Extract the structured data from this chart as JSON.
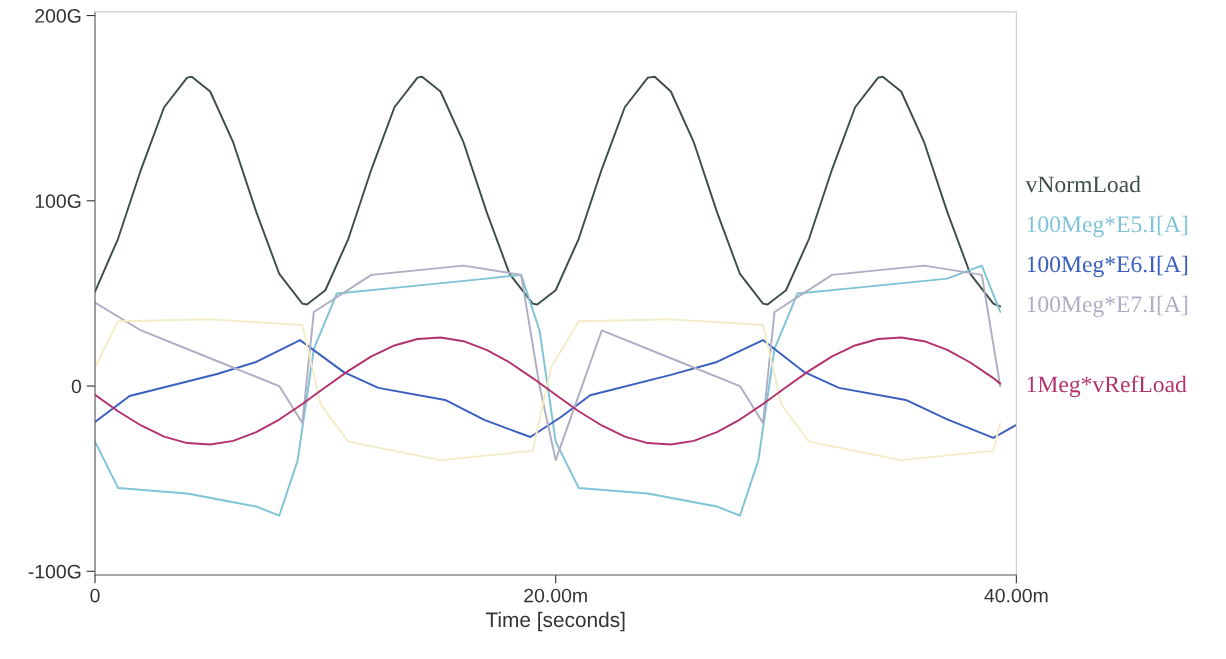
{
  "chart_data": {
    "type": "line",
    "xlabel": "Time [seconds]",
    "xlim": [
      0,
      40
    ],
    "ylim": [
      -102,
      202
    ],
    "xticks": [
      {
        "value": 0,
        "label": "0"
      },
      {
        "value": 20,
        "label": "20.00m"
      },
      {
        "value": 40,
        "label": "40.00m"
      }
    ],
    "yticks": [
      {
        "value": -100,
        "label": "-100G"
      },
      {
        "value": 0,
        "label": "0"
      },
      {
        "value": 100,
        "label": "100G"
      },
      {
        "value": 200,
        "label": "200G"
      }
    ],
    "grid": false,
    "legend": "right",
    "marker": "none",
    "line_style": "solid",
    "series": [
      {
        "name": "vNormLoad",
        "color": "#3f4f47",
        "x": [
          0,
          1,
          2,
          3,
          4,
          4.2,
          5,
          6,
          7,
          8,
          9,
          9.2,
          10,
          11,
          12,
          13,
          14,
          14.2,
          15,
          16,
          17,
          18,
          19,
          19.2,
          20,
          21,
          22,
          23,
          24,
          24.3,
          25,
          26,
          27,
          28,
          29,
          29.2,
          30,
          31,
          32,
          33,
          34,
          34.2,
          35,
          36,
          37,
          38,
          39,
          39.3
        ],
        "values": [
          51,
          79.5,
          117,
          150.5,
          166.5,
          167,
          159,
          131.5,
          94,
          60.5,
          44.5,
          44,
          51.7,
          79.5,
          117,
          150.5,
          166.5,
          167,
          159,
          131.5,
          94,
          60.5,
          44.5,
          44,
          51.7,
          79.5,
          117,
          150.5,
          166.5,
          167,
          159,
          131.5,
          94,
          60.5,
          44.5,
          44,
          51.7,
          79.5,
          117,
          150.5,
          166.5,
          167,
          159,
          131.5,
          94,
          60.5,
          44.5,
          43
        ]
      },
      {
        "name": "100Meg*E5.I[A]",
        "color": "#7fc3d6",
        "x": [
          0,
          1,
          4,
          7,
          8,
          8.8,
          9.5,
          10.5,
          13,
          17,
          18.5,
          19.3,
          20,
          21,
          24,
          27,
          28,
          28.8,
          29.5,
          30.5,
          33,
          37,
          38.5,
          39.3
        ],
        "values": [
          -30,
          -55,
          -58,
          -65,
          -70,
          -40,
          20,
          50,
          53,
          58,
          60,
          30,
          -30,
          -55,
          -58,
          -65,
          -70,
          -40,
          20,
          50,
          53,
          58,
          65,
          40
        ]
      },
      {
        "name": "100Meg*E6.I[A]",
        "color": "#3a5fc0",
        "x": [
          0,
          1.5,
          5.3,
          7,
          8.9,
          10.8,
          12.3,
          15.2,
          16.9,
          18.9,
          20.2,
          21.5,
          25,
          27,
          29,
          30.8,
          32.3,
          35.2,
          37,
          39,
          40
        ],
        "values": [
          -19.4,
          -5.4,
          6.5,
          13,
          24.8,
          7.5,
          -1,
          -7.5,
          -18.3,
          -27.5,
          -17,
          -5,
          6,
          13,
          24.8,
          7.5,
          -1,
          -7.5,
          -18,
          -28,
          -21
        ]
      },
      {
        "name": "100Meg*E7.I[A]",
        "color": "#aeaec4",
        "x": [
          0,
          2,
          5,
          8,
          9,
          9.5,
          12,
          16,
          18.5,
          19.3,
          20,
          22,
          25,
          28,
          29,
          29.5,
          32,
          36,
          38.5,
          39.3
        ],
        "values": [
          45,
          30,
          15,
          0,
          -20,
          40,
          60,
          65,
          60,
          0,
          -40,
          30,
          15,
          0,
          -20,
          40,
          60,
          65,
          60,
          0
        ]
      },
      {
        "name": null,
        "color": "#f3ecc6",
        "x": [
          0,
          1,
          5,
          9,
          9.8,
          11,
          15,
          19,
          19.8,
          21,
          25,
          29,
          29.8,
          31,
          35,
          39,
          39.3
        ],
        "values": [
          10,
          35,
          36,
          33,
          -10,
          -30,
          -40,
          -35,
          10,
          35,
          36,
          33,
          -10,
          -30,
          -40,
          -35,
          -20
        ]
      },
      {
        "name": "1Meg*vRefLoad",
        "color": "#b2326e",
        "x": [
          0,
          1,
          2,
          3,
          4,
          5,
          6,
          7,
          8,
          9,
          10,
          11,
          12,
          13,
          14,
          15,
          16,
          17,
          18,
          19,
          20,
          21,
          22,
          23,
          24,
          25,
          26,
          27,
          28,
          29,
          30,
          31,
          32,
          33,
          34,
          35,
          36,
          37,
          38,
          39,
          39.3
        ],
        "values": [
          -4.7,
          -13.6,
          -21.3,
          -27.3,
          -30.8,
          -31.6,
          -29.6,
          -24.9,
          -18.1,
          -9.7,
          -0.7,
          8.2,
          16,
          21.9,
          25.4,
          26.2,
          24.2,
          19.5,
          12.7,
          4.3,
          -4.7,
          -13.6,
          -21.3,
          -27.3,
          -30.8,
          -31.6,
          -29.6,
          -24.9,
          -18.1,
          -9.7,
          -0.7,
          8.2,
          16,
          21.9,
          25.4,
          26.2,
          24.2,
          19.5,
          12.7,
          4.3,
          1.3
        ]
      }
    ]
  }
}
